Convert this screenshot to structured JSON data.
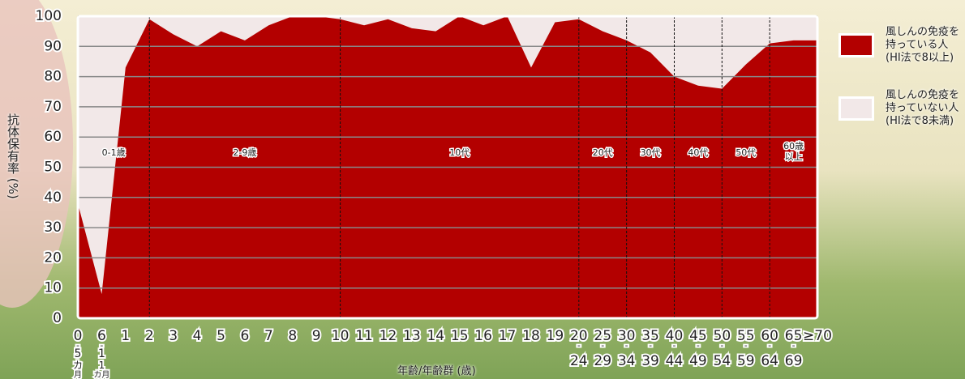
{
  "chart_data": {
    "type": "area",
    "y_label": "抗体保有率 (%)",
    "x_label": "年齢/年齢群 (歳)",
    "categories": [
      "0-5カ月",
      "6-11カ月",
      "1",
      "2",
      "3",
      "4",
      "5",
      "6",
      "7",
      "8",
      "9",
      "10",
      "11",
      "12",
      "13",
      "14",
      "15",
      "16",
      "17",
      "18",
      "19",
      "20-24",
      "25-29",
      "30-34",
      "35-39",
      "40-44",
      "45-49",
      "50-54",
      "55-59",
      "60-64",
      "65-69",
      "≥70"
    ],
    "series": [
      {
        "name": "風しんの免疫を\n持っている人\n(HI法で8以上)",
        "color": "#b30000",
        "values": [
          38,
          8,
          83,
          99,
          94,
          90,
          95,
          92,
          97,
          100,
          100,
          99,
          97,
          99,
          96,
          95,
          100,
          97,
          100,
          83,
          98,
          99,
          95,
          92,
          88,
          80,
          77,
          76,
          84,
          91,
          92,
          92
        ]
      }
    ],
    "fill_above": {
      "name": "風しんの免疫を\n持っていない人\n(HI法で8未満)",
      "color": "#f2e8e8"
    },
    "groups": [
      "0-1歳",
      "2-9歳",
      "10代",
      "20代",
      "30代",
      "40代",
      "50代",
      "60歳\n以上"
    ],
    "ylim": [
      0,
      100
    ],
    "yticks": [
      0,
      10,
      20,
      30,
      40,
      50,
      60,
      70,
      80,
      90,
      100
    ],
    "grid": true
  }
}
